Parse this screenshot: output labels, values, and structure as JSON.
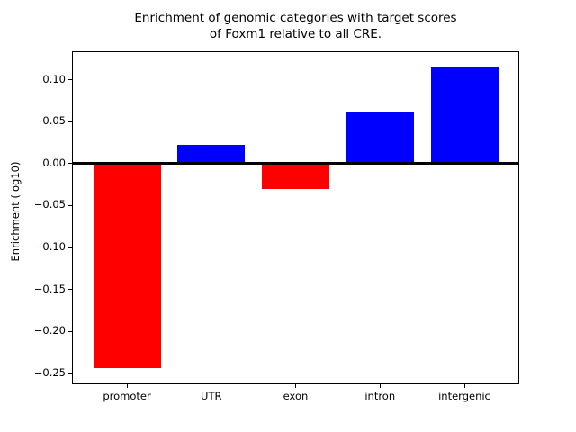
{
  "figure": {
    "title_line1": "Enrichment of genomic categories with target scores",
    "title_line2": "of Foxm1 relative to all CRE.",
    "ylabel": "Enrichment (log10)"
  },
  "chart_data": {
    "type": "bar",
    "title": "Enrichment of genomic categories with target scores\nof Foxm1 relative to all CRE.",
    "xlabel": "",
    "ylabel": "Enrichment (log10)",
    "categories": [
      "promoter",
      "UTR",
      "exon",
      "intron",
      "intergenic"
    ],
    "values": [
      -0.244,
      0.022,
      -0.03,
      0.061,
      0.115
    ],
    "bar_colors": [
      "#ff0000",
      "#0000ff",
      "#ff0000",
      "#0000ff",
      "#0000ff"
    ],
    "color_rule": {
      "positive": "#0000ff",
      "negative": "#ff0000"
    },
    "bar_width": 0.8,
    "xlim": [
      -0.64,
      4.64
    ],
    "ylim": [
      -0.262,
      0.133
    ],
    "yticks": [
      0.1,
      0.05,
      0.0,
      -0.05,
      -0.1,
      -0.15,
      -0.2,
      -0.25
    ],
    "ytick_labels": [
      "0.10",
      "0.05",
      "0.00",
      "−0.05",
      "−0.10",
      "−0.15",
      "−0.20",
      "−0.25"
    ],
    "zero_line": true,
    "grid": false,
    "legend": false,
    "background": "#ffffff",
    "axis_color": "#000000"
  }
}
